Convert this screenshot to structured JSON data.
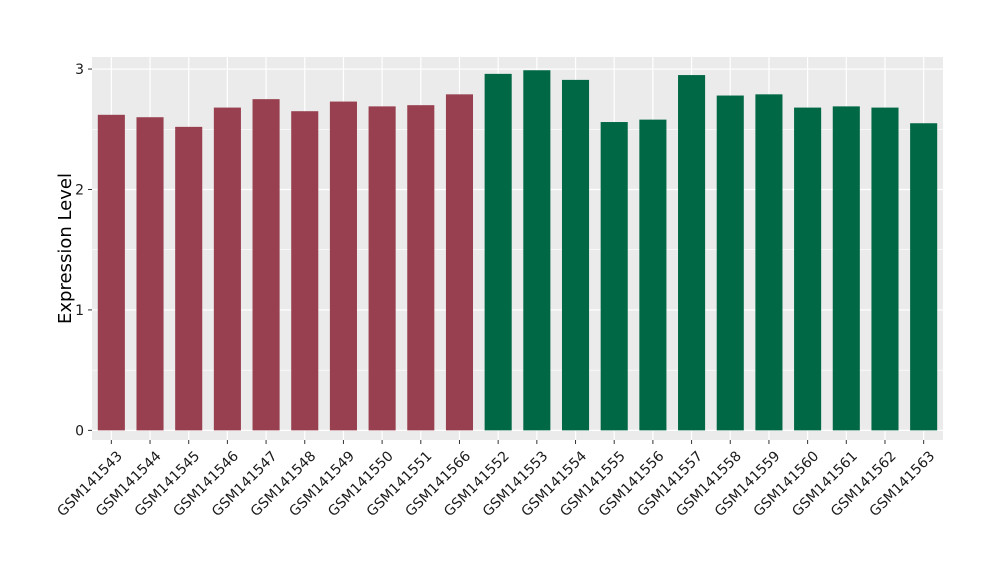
{
  "chart_data": {
    "type": "bar",
    "title": "",
    "xlabel": "",
    "ylabel": "Expression Level",
    "ylim": [
      -0.08,
      3.1
    ],
    "yticks": [
      0,
      1,
      2,
      3
    ],
    "grid": true,
    "legend": "none",
    "categories": [
      "GSM141543",
      "GSM141544",
      "GSM141545",
      "GSM141546",
      "GSM141547",
      "GSM141548",
      "GSM141549",
      "GSM141550",
      "GSM141551",
      "GSM141566",
      "GSM141552",
      "GSM141553",
      "GSM141554",
      "GSM141555",
      "GSM141556",
      "GSM141557",
      "GSM141558",
      "GSM141559",
      "GSM141560",
      "GSM141561",
      "GSM141562",
      "GSM141563"
    ],
    "values": [
      2.62,
      2.6,
      2.52,
      2.68,
      2.75,
      2.65,
      2.73,
      2.69,
      2.7,
      2.79,
      2.96,
      2.99,
      2.91,
      2.56,
      2.58,
      2.95,
      2.78,
      2.79,
      2.68,
      2.69,
      2.68,
      2.55
    ],
    "bar_colors": [
      "#98404F",
      "#98404F",
      "#98404F",
      "#98404F",
      "#98404F",
      "#98404F",
      "#98404F",
      "#98404F",
      "#98404F",
      "#98404F",
      "#006845",
      "#006845",
      "#006845",
      "#006845",
      "#006845",
      "#006845",
      "#006845",
      "#006845",
      "#006845",
      "#006845",
      "#006845",
      "#006845"
    ],
    "panel_color": "#EBEBEB",
    "grid_color": "#FFFFFF"
  }
}
